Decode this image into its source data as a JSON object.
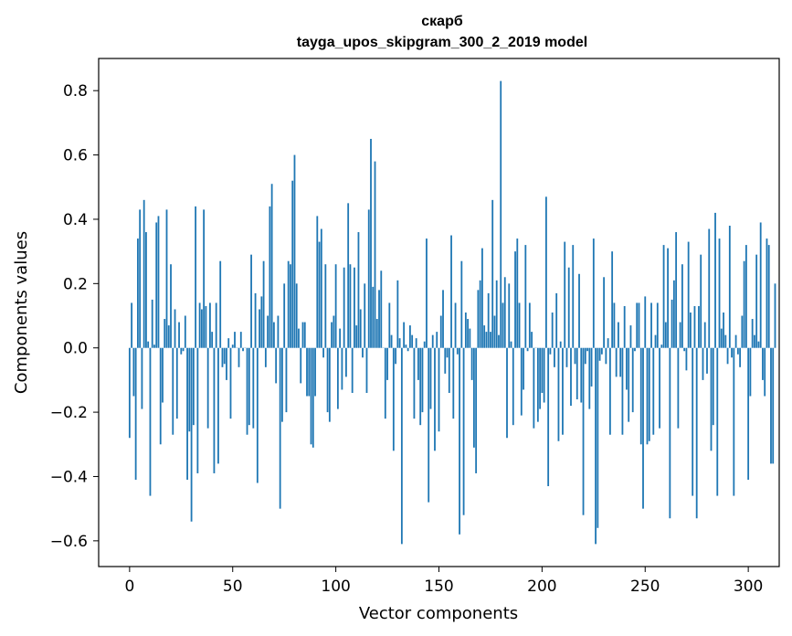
{
  "chart_data": {
    "type": "bar",
    "title": "скарб",
    "subtitle": "tayga_upos_skipgram_300_2_2019 model",
    "xlabel": "Vector components",
    "ylabel": "Components values",
    "xlim": [
      -15,
      315
    ],
    "ylim": [
      -0.68,
      0.9
    ],
    "xticks": [
      0,
      50,
      100,
      150,
      200,
      250,
      300
    ],
    "xtick_labels": [
      "0",
      "50",
      "100",
      "150",
      "200",
      "250",
      "300"
    ],
    "yticks": [
      -0.6,
      -0.4,
      -0.2,
      0.0,
      0.2,
      0.4,
      0.6,
      0.8
    ],
    "ytick_labels": [
      "−0.6",
      "−0.4",
      "−0.2",
      "0.0",
      "0.2",
      "0.4",
      "0.6",
      "0.8"
    ],
    "bar_color": "#1f77b4",
    "grid": false,
    "legend": "none",
    "x_start": 0,
    "values": [
      -0.28,
      0.14,
      -0.15,
      -0.41,
      0.34,
      0.43,
      -0.19,
      0.46,
      0.36,
      0.02,
      -0.46,
      0.15,
      0.01,
      0.39,
      0.41,
      -0.3,
      -0.17,
      0.09,
      0.43,
      0.07,
      0.26,
      -0.27,
      0.12,
      -0.22,
      0.08,
      -0.02,
      -0.01,
      0.1,
      -0.41,
      -0.26,
      -0.54,
      -0.24,
      0.44,
      -0.39,
      0.14,
      0.12,
      0.43,
      0.13,
      -0.25,
      0.14,
      0.05,
      -0.39,
      0.14,
      -0.36,
      0.27,
      -0.06,
      -0.05,
      -0.1,
      0.03,
      -0.22,
      0.01,
      0.05,
      0.0,
      -0.06,
      0.05,
      -0.01,
      0.0,
      -0.27,
      -0.24,
      0.29,
      -0.25,
      0.17,
      -0.42,
      0.12,
      0.16,
      0.27,
      -0.06,
      0.1,
      0.44,
      0.51,
      0.08,
      -0.11,
      0.1,
      -0.5,
      -0.23,
      0.2,
      -0.2,
      0.27,
      0.26,
      0.52,
      0.6,
      0.2,
      0.06,
      -0.11,
      0.08,
      0.08,
      -0.15,
      -0.15,
      -0.3,
      -0.31,
      -0.15,
      0.41,
      0.33,
      0.37,
      -0.03,
      0.26,
      -0.2,
      -0.23,
      0.08,
      0.1,
      0.26,
      -0.19,
      0.06,
      -0.13,
      0.25,
      -0.09,
      0.45,
      0.26,
      -0.14,
      0.25,
      0.07,
      0.36,
      0.12,
      -0.03,
      0.2,
      -0.14,
      0.43,
      0.65,
      0.19,
      0.58,
      0.09,
      0.18,
      0.24,
      0.0,
      -0.22,
      -0.1,
      0.14,
      0.04,
      -0.32,
      -0.05,
      0.21,
      0.03,
      -0.61,
      0.08,
      0.01,
      -0.01,
      0.07,
      0.04,
      -0.22,
      0.03,
      -0.1,
      -0.24,
      -0.2,
      0.02,
      0.34,
      -0.48,
      -0.19,
      0.04,
      -0.32,
      0.05,
      -0.26,
      0.1,
      0.18,
      -0.08,
      -0.03,
      -0.14,
      0.35,
      -0.22,
      0.14,
      -0.02,
      -0.58,
      0.27,
      -0.52,
      0.11,
      0.09,
      0.06,
      -0.1,
      -0.31,
      -0.39,
      0.18,
      0.21,
      0.31,
      0.07,
      0.05,
      0.17,
      0.05,
      0.46,
      0.1,
      0.21,
      0.04,
      0.83,
      0.14,
      0.22,
      -0.28,
      0.2,
      0.02,
      -0.24,
      0.3,
      0.34,
      0.14,
      -0.21,
      -0.13,
      0.32,
      -0.01,
      0.14,
      0.05,
      -0.25,
      0.0,
      -0.23,
      -0.19,
      -0.14,
      -0.17,
      0.47,
      -0.43,
      -0.02,
      0.11,
      -0.06,
      0.17,
      -0.29,
      0.02,
      -0.27,
      0.33,
      -0.06,
      0.25,
      -0.18,
      0.32,
      -0.05,
      -0.16,
      0.23,
      -0.17,
      -0.52,
      -0.05,
      -0.01,
      -0.19,
      -0.12,
      0.34,
      -0.61,
      -0.56,
      -0.04,
      -0.02,
      0.22,
      -0.05,
      0.03,
      -0.27,
      0.3,
      0.14,
      -0.09,
      0.08,
      -0.09,
      -0.27,
      0.13,
      -0.13,
      -0.23,
      0.07,
      -0.2,
      -0.01,
      0.14,
      0.14,
      -0.3,
      -0.5,
      0.16,
      -0.3,
      -0.29,
      0.14,
      -0.27,
      0.04,
      0.14,
      -0.25,
      0.01,
      0.32,
      0.08,
      0.31,
      -0.53,
      0.15,
      0.21,
      0.36,
      -0.25,
      0.08,
      0.26,
      -0.01,
      -0.07,
      0.33,
      0.11,
      -0.46,
      0.13,
      -0.53,
      0.13,
      0.29,
      -0.1,
      0.08,
      -0.08,
      0.37,
      -0.32,
      -0.24,
      0.42,
      -0.46,
      0.34,
      0.06,
      0.11,
      0.04,
      -0.05,
      0.38,
      -0.03,
      -0.46,
      0.04,
      -0.02,
      -0.06,
      0.1,
      0.27,
      0.32,
      -0.41,
      -0.15,
      0.09,
      0.04,
      0.29,
      0.02,
      0.39,
      -0.1,
      -0.15,
      0.34,
      0.32,
      -0.36,
      -0.36,
      0.2
    ]
  }
}
